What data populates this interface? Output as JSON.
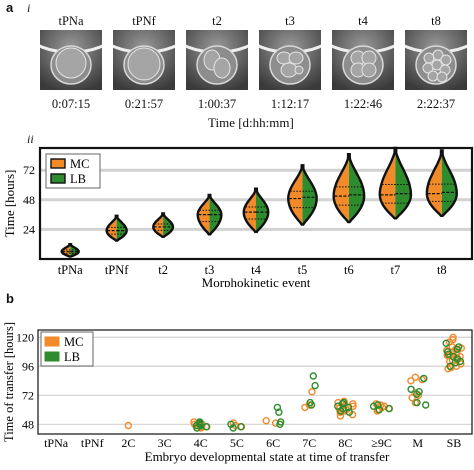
{
  "panel_a": {
    "letter": "a",
    "sublabel_i": "i",
    "sublabel_ii": "ii",
    "stages": [
      "tPNa",
      "tPNf",
      "t2",
      "t3",
      "t4",
      "t8"
    ],
    "times": [
      "0:07:15",
      "0:21:57",
      "1:00:37",
      "1:12:17",
      "1:22:46",
      "2:22:37"
    ],
    "time_axis_label": "Time [d:hh:mm]"
  },
  "panel_b": {
    "letter": "b"
  },
  "colors": {
    "MC": "#f28a2a",
    "LB": "#2e8b2e",
    "axis": "#111111",
    "grid": "#d2d2d2",
    "violin_outline": "#111111"
  },
  "chart_data": [
    {
      "type": "violin",
      "xlabel": "Morphokinetic event",
      "ylabel": "Time [hours]",
      "categories": [
        "tPNa",
        "tPNf",
        "t2",
        "t3",
        "t4",
        "t5",
        "t6",
        "t7",
        "t8"
      ],
      "yticks": [
        24,
        48,
        72
      ],
      "ylim": [
        0,
        90
      ],
      "grid": true,
      "legend": {
        "position": "top-left",
        "entries": [
          "MC",
          "LB"
        ]
      },
      "series": [
        {
          "name": "MC",
          "medians": [
            6,
            23,
            26,
            36,
            38,
            49,
            51,
            52,
            53
          ],
          "ranges": [
            [
              2,
              12
            ],
            [
              15,
              35
            ],
            [
              18,
              37
            ],
            [
              20,
              52
            ],
            [
              22,
              57
            ],
            [
              28,
              76
            ],
            [
              30,
              85
            ],
            [
              33,
              90
            ],
            [
              35,
              88
            ]
          ]
        },
        {
          "name": "LB",
          "medians": [
            6,
            23,
            26,
            36,
            38,
            50,
            52,
            53,
            54
          ],
          "ranges": [
            [
              2,
              12
            ],
            [
              15,
              35
            ],
            [
              18,
              37
            ],
            [
              20,
              52
            ],
            [
              22,
              57
            ],
            [
              28,
              76
            ],
            [
              30,
              85
            ],
            [
              33,
              90
            ],
            [
              35,
              88
            ]
          ]
        }
      ]
    },
    {
      "type": "scatter",
      "xlabel": "Embryo developmental state at time of transfer",
      "ylabel": "Time of transfer [hours]",
      "categories": [
        "tPNa",
        "tPNf",
        "2C",
        "3C",
        "4C",
        "5C",
        "6C",
        "7C",
        "8C",
        "≥9C",
        "M",
        "SB"
      ],
      "yticks": [
        48,
        72,
        96,
        120
      ],
      "ylim": [
        40,
        126
      ],
      "grid": true,
      "legend": {
        "position": "top-left",
        "entries": [
          "MC",
          "LB"
        ]
      },
      "series": [
        {
          "name": "MC",
          "points": [
            {
              "x": "2C",
              "y": 47
            },
            {
              "x": "4C",
              "y": 46
            },
            {
              "x": "4C",
              "y": 48
            },
            {
              "x": "4C",
              "y": 47
            },
            {
              "x": "4C",
              "y": 49
            },
            {
              "x": "4C",
              "y": 45
            },
            {
              "x": "4C",
              "y": 50
            },
            {
              "x": "4C",
              "y": 46
            },
            {
              "x": "4C",
              "y": 48
            },
            {
              "x": "5C",
              "y": 47
            },
            {
              "x": "5C",
              "y": 49
            },
            {
              "x": "5C",
              "y": 46
            },
            {
              "x": "6C",
              "y": 49
            },
            {
              "x": "6C",
              "y": 51
            },
            {
              "x": "7C",
              "y": 64
            },
            {
              "x": "7C",
              "y": 62
            },
            {
              "x": "7C",
              "y": 75
            },
            {
              "x": "8C",
              "y": 62
            },
            {
              "x": "8C",
              "y": 60
            },
            {
              "x": "8C",
              "y": 64
            },
            {
              "x": "8C",
              "y": 58
            },
            {
              "x": "8C",
              "y": 66
            },
            {
              "x": "8C",
              "y": 56
            },
            {
              "x": "8C",
              "y": 63
            },
            {
              "x": "8C",
              "y": 61
            },
            {
              "x": "8C",
              "y": 59
            },
            {
              "x": "8C",
              "y": 65
            },
            {
              "x": "8C",
              "y": 55
            },
            {
              "x": "8C",
              "y": 67
            },
            {
              "x": "≥9C",
              "y": 62
            },
            {
              "x": "≥9C",
              "y": 63
            },
            {
              "x": "≥9C",
              "y": 60
            },
            {
              "x": "≥9C",
              "y": 65
            },
            {
              "x": "≥9C",
              "y": 61
            },
            {
              "x": "≥9C",
              "y": 64
            },
            {
              "x": "≥9C",
              "y": 59
            },
            {
              "x": "M",
              "y": 72
            },
            {
              "x": "M",
              "y": 74
            },
            {
              "x": "M",
              "y": 70
            },
            {
              "x": "M",
              "y": 85
            },
            {
              "x": "M",
              "y": 87
            },
            {
              "x": "M",
              "y": 66
            },
            {
              "x": "M",
              "y": 84
            },
            {
              "x": "SB",
              "y": 98
            },
            {
              "x": "SB",
              "y": 100
            },
            {
              "x": "SB",
              "y": 104
            },
            {
              "x": "SB",
              "y": 108
            },
            {
              "x": "SB",
              "y": 106
            },
            {
              "x": "SB",
              "y": 110
            },
            {
              "x": "SB",
              "y": 112
            },
            {
              "x": "SB",
              "y": 102
            },
            {
              "x": "SB",
              "y": 96
            },
            {
              "x": "SB",
              "y": 94
            },
            {
              "x": "SB",
              "y": 116
            },
            {
              "x": "SB",
              "y": 120
            },
            {
              "x": "SB",
              "y": 105
            },
            {
              "x": "SB",
              "y": 109
            },
            {
              "x": "SB",
              "y": 101
            },
            {
              "x": "SB",
              "y": 107
            },
            {
              "x": "SB",
              "y": 103
            },
            {
              "x": "SB",
              "y": 111
            },
            {
              "x": "SB",
              "y": 95
            },
            {
              "x": "SB",
              "y": 118
            }
          ]
        },
        {
          "name": "LB",
          "points": [
            {
              "x": "4C",
              "y": 47
            },
            {
              "x": "4C",
              "y": 49
            },
            {
              "x": "4C",
              "y": 46
            },
            {
              "x": "4C",
              "y": 48
            },
            {
              "x": "4C",
              "y": 50
            },
            {
              "x": "4C",
              "y": 45
            },
            {
              "x": "4C",
              "y": 47
            },
            {
              "x": "5C",
              "y": 46
            },
            {
              "x": "5C",
              "y": 48
            },
            {
              "x": "5C",
              "y": 45
            },
            {
              "x": "6C",
              "y": 62
            },
            {
              "x": "6C",
              "y": 58
            },
            {
              "x": "6C",
              "y": 50
            },
            {
              "x": "6C",
              "y": 48
            },
            {
              "x": "7C",
              "y": 80
            },
            {
              "x": "7C",
              "y": 88
            },
            {
              "x": "7C",
              "y": 64
            },
            {
              "x": "7C",
              "y": 66
            },
            {
              "x": "8C",
              "y": 63
            },
            {
              "x": "8C",
              "y": 65
            },
            {
              "x": "8C",
              "y": 61
            },
            {
              "x": "8C",
              "y": 59
            },
            {
              "x": "8C",
              "y": 66
            },
            {
              "x": "8C",
              "y": 62
            },
            {
              "x": "8C",
              "y": 58
            },
            {
              "x": "≥9C",
              "y": 64
            },
            {
              "x": "≥9C",
              "y": 61
            },
            {
              "x": "≥9C",
              "y": 63
            },
            {
              "x": "≥9C",
              "y": 60
            },
            {
              "x": "M",
              "y": 75
            },
            {
              "x": "M",
              "y": 73
            },
            {
              "x": "M",
              "y": 77
            },
            {
              "x": "M",
              "y": 64
            },
            {
              "x": "M",
              "y": 66
            },
            {
              "x": "M",
              "y": 86
            },
            {
              "x": "SB",
              "y": 99
            },
            {
              "x": "SB",
              "y": 104
            },
            {
              "x": "SB",
              "y": 108
            },
            {
              "x": "SB",
              "y": 112
            },
            {
              "x": "SB",
              "y": 100
            },
            {
              "x": "SB",
              "y": 96
            },
            {
              "x": "SB",
              "y": 115
            },
            {
              "x": "SB",
              "y": 106
            },
            {
              "x": "SB",
              "y": 110
            },
            {
              "x": "SB",
              "y": 102
            }
          ]
        }
      ]
    }
  ]
}
